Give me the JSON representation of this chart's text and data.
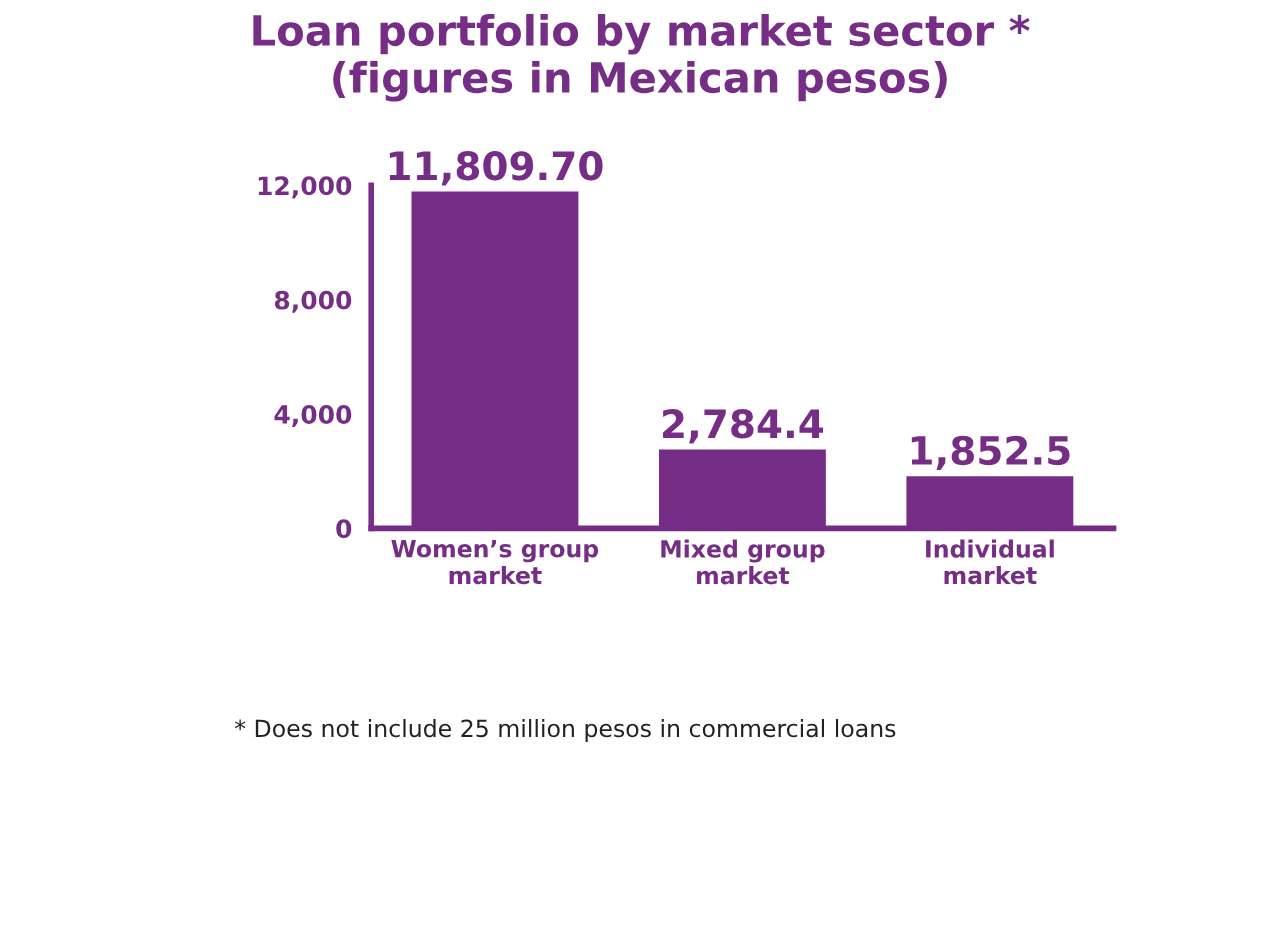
{
  "chart_data": {
    "type": "bar",
    "title": "Loan portfolio by market sector *\n(figures in Mexican pesos)",
    "categories": [
      "Women’s group\nmarket",
      "Mixed group\nmarket",
      "Individual\nmarket"
    ],
    "values": [
      11809.7,
      2784.4,
      1852.5
    ],
    "value_labels": [
      "11,809.70",
      "2,784.4",
      "1,852.5"
    ],
    "color": "#752d85",
    "ylim": [
      0,
      12000
    ],
    "yticks": [
      0,
      {
        "value": 4000,
        "label": "4,000"
      },
      {
        "value": 8000,
        "label": "8,000"
      },
      {
        "value": 12000,
        "label": "12,000"
      }
    ],
    "grid": false,
    "annotations": [
      "* Does not include 25 million pesos in commercial loans"
    ]
  }
}
